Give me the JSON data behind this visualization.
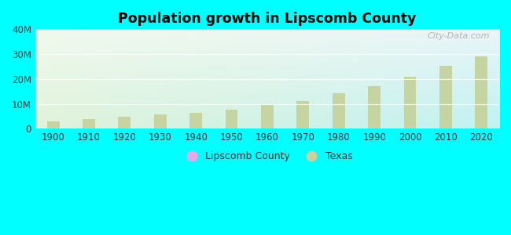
{
  "title": "Population growth in Lipscomb County",
  "background_color": "#00FFFF",
  "years": [
    1900,
    1910,
    1920,
    1930,
    1940,
    1950,
    1960,
    1970,
    1980,
    1990,
    2000,
    2010,
    2020
  ],
  "texas_values": [
    3048710,
    3896542,
    4663228,
    5824715,
    6414824,
    7711194,
    9579677,
    11196730,
    14229191,
    16986510,
    20851820,
    25145561,
    29145505
  ],
  "bar_color": "#c5d4a0",
  "bar_color_lipscomb": "#e8a8e8",
  "ylim": [
    0,
    40000000
  ],
  "yticks": [
    0,
    10000000,
    20000000,
    30000000,
    40000000
  ],
  "ytick_labels": [
    "0",
    "10M",
    "20M",
    "30M",
    "40M"
  ],
  "watermark": "City-Data.com",
  "legend_lipscomb": "Lipscomb County",
  "legend_texas": "Texas",
  "bar_width": 0.35,
  "grid_color": "#dddddd",
  "plot_left_color": "#d4edd4",
  "plot_right_color": "#cceeff",
  "plot_top_color": "#e8f4f8",
  "plot_bottom_color": "#f0f8f0"
}
